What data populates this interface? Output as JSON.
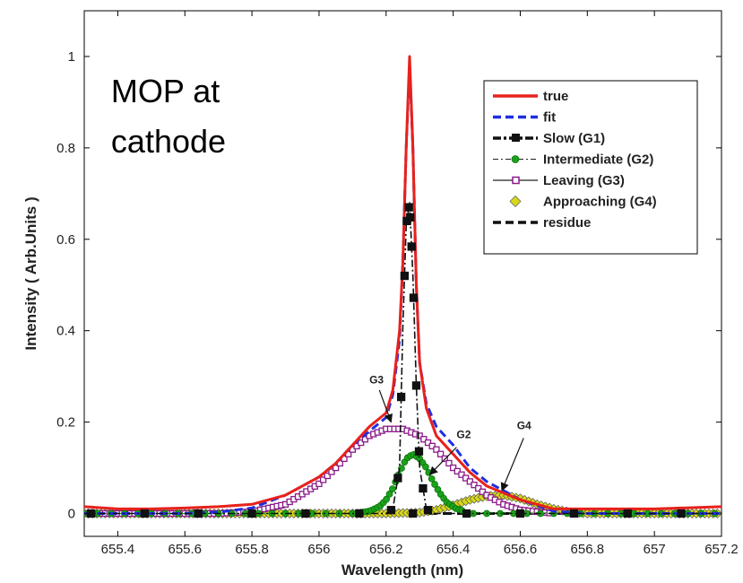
{
  "chart_data": {
    "type": "line",
    "xlabel": "Wavelength (nm)",
    "ylabel": "Intensity ( Arb.Units )",
    "xlim": [
      655.3,
      657.2
    ],
    "ylim": [
      -0.05,
      1.1
    ],
    "xticks": [
      655.4,
      655.6,
      655.8,
      656,
      656.2,
      656.4,
      656.6,
      656.8,
      657,
      657.2
    ],
    "xtick_labels": [
      "655.4",
      "655.6",
      "655.8",
      "656",
      "656.2",
      "656.4",
      "656.6",
      "656.8",
      "657",
      "657.2"
    ],
    "yticks": [
      0,
      0.2,
      0.4,
      0.6,
      0.8,
      1
    ],
    "ytick_labels": [
      "0",
      "0.2",
      "0.4",
      "0.6",
      "0.8",
      "1"
    ],
    "grid": false,
    "legend_position": "top-right",
    "series": [
      {
        "name": "true",
        "color": "#e8211c",
        "style": "solid",
        "x": [
          655.3,
          655.4,
          655.5,
          655.6,
          655.7,
          655.8,
          655.9,
          656.0,
          656.05,
          656.1,
          656.15,
          656.2,
          656.22,
          656.24,
          656.25,
          656.26,
          656.27,
          656.28,
          656.29,
          656.3,
          656.32,
          656.35,
          656.4,
          656.45,
          656.5,
          656.55,
          656.6,
          656.7,
          656.8,
          657.0,
          657.2
        ],
        "y": [
          0.015,
          0.01,
          0.01,
          0.012,
          0.015,
          0.02,
          0.04,
          0.08,
          0.11,
          0.15,
          0.19,
          0.22,
          0.27,
          0.4,
          0.55,
          0.8,
          1.0,
          0.8,
          0.5,
          0.33,
          0.23,
          0.17,
          0.13,
          0.09,
          0.06,
          0.045,
          0.03,
          0.01,
          0.01,
          0.01,
          0.015
        ]
      },
      {
        "name": "fit",
        "color": "#1f2ee0",
        "style": "dashed",
        "x": [
          655.3,
          655.4,
          655.5,
          655.6,
          655.7,
          655.8,
          655.9,
          656.0,
          656.05,
          656.1,
          656.15,
          656.2,
          656.22,
          656.24,
          656.25,
          656.26,
          656.27,
          656.28,
          656.29,
          656.3,
          656.32,
          656.35,
          656.4,
          656.45,
          656.5,
          656.55,
          656.6,
          656.7,
          656.8,
          657.0,
          657.2
        ],
        "y": [
          0.0,
          0.0,
          0.0,
          0.0,
          0.003,
          0.012,
          0.04,
          0.08,
          0.11,
          0.15,
          0.18,
          0.21,
          0.26,
          0.38,
          0.55,
          0.8,
          0.98,
          0.8,
          0.5,
          0.33,
          0.24,
          0.19,
          0.15,
          0.1,
          0.07,
          0.05,
          0.03,
          0.005,
          0.0,
          0.0,
          0.0
        ]
      },
      {
        "name": "Slow (G1)",
        "color": "#111111",
        "style": "dashdot-square",
        "x": [
          655.3,
          656.2,
          656.22,
          656.24,
          656.25,
          656.26,
          656.27,
          656.28,
          656.29,
          656.3,
          656.32,
          656.34,
          657.2
        ],
        "y": [
          0,
          0,
          0.01,
          0.1,
          0.41,
          0.63,
          0.68,
          0.52,
          0.28,
          0.1,
          0.01,
          0,
          0
        ]
      },
      {
        "name": "Intermediate (G2)",
        "color": "#1aa31a",
        "style": "dashdot-circle",
        "x": [
          655.3,
          656.1,
          656.15,
          656.18,
          656.2,
          656.22,
          656.24,
          656.26,
          656.28,
          656.3,
          656.32,
          656.34,
          656.36,
          656.38,
          656.41,
          656.45,
          657.2
        ],
        "y": [
          0,
          0,
          0.005,
          0.015,
          0.03,
          0.055,
          0.09,
          0.12,
          0.13,
          0.12,
          0.1,
          0.07,
          0.045,
          0.025,
          0.01,
          0.002,
          0
        ]
      },
      {
        "name": "Leaving (G3)",
        "color": "#8a1a8a",
        "style": "solid-square",
        "x": [
          655.3,
          655.7,
          655.8,
          655.9,
          656.0,
          656.05,
          656.1,
          656.15,
          656.2,
          656.25,
          656.3,
          656.35,
          656.4,
          656.45,
          656.5,
          656.55,
          656.6,
          656.7,
          656.8,
          657.2
        ],
        "y": [
          0,
          0,
          0.004,
          0.02,
          0.065,
          0.1,
          0.14,
          0.17,
          0.185,
          0.185,
          0.17,
          0.14,
          0.1,
          0.07,
          0.04,
          0.02,
          0.008,
          0,
          0,
          0
        ]
      },
      {
        "name": "Approaching (G4)",
        "color": "#d8d81a",
        "style": "diamond",
        "x": [
          655.3,
          656.2,
          656.3,
          656.35,
          656.4,
          656.45,
          656.5,
          656.55,
          656.6,
          656.65,
          656.7,
          656.75,
          656.8,
          657.2
        ],
        "y": [
          0,
          0,
          0.002,
          0.008,
          0.018,
          0.03,
          0.038,
          0.04,
          0.033,
          0.02,
          0.01,
          0.003,
          0,
          0
        ]
      },
      {
        "name": "residue",
        "color": "#111111",
        "style": "dashed",
        "x": [
          655.3,
          655.5,
          655.7,
          655.9,
          656.1,
          656.3,
          656.5,
          656.7,
          656.9,
          657.2
        ],
        "y": [
          0,
          0,
          0,
          0,
          0,
          0,
          0,
          0,
          0,
          0
        ]
      }
    ],
    "annotations": [
      {
        "text": "MOP at",
        "x": 655.38,
        "y": 0.9
      },
      {
        "text": "cathode",
        "x": 655.38,
        "y": 0.79
      },
      {
        "text": "G3",
        "x": 656.15,
        "y": 0.285
      },
      {
        "text": "G2",
        "x": 656.41,
        "y": 0.165
      },
      {
        "text": "G4",
        "x": 656.59,
        "y": 0.185
      }
    ]
  }
}
